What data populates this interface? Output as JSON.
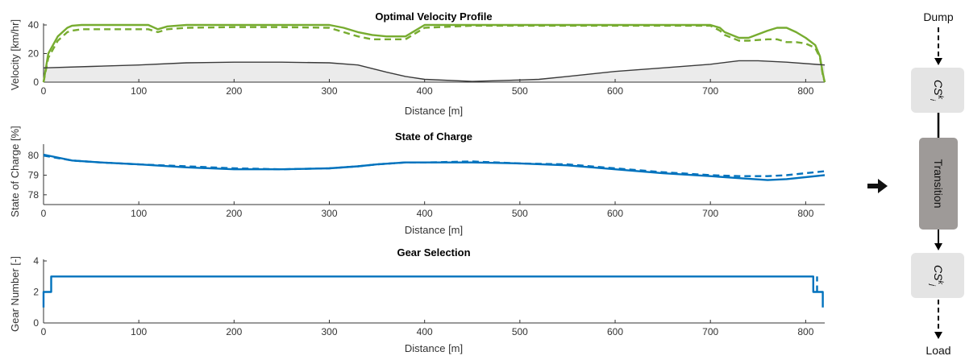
{
  "chart_data": [
    {
      "type": "line",
      "title": "Optimal Velocity Profile",
      "xlabel": "Distance [m]",
      "ylabel": "Velocity [km/hr]",
      "xlim": [
        0,
        820
      ],
      "ylim": [
        0,
        40
      ],
      "xticks": [
        0,
        100,
        200,
        300,
        400,
        500,
        600,
        700,
        800
      ],
      "yticks": [
        0,
        20,
        40
      ],
      "grid": false,
      "series": [
        {
          "style": "solid",
          "color": "#77ac30",
          "x": [
            0,
            5,
            15,
            25,
            30,
            40,
            60,
            80,
            100,
            110,
            120,
            130,
            150,
            200,
            250,
            300,
            315,
            330,
            345,
            360,
            380,
            400,
            450,
            500,
            550,
            600,
            650,
            700,
            710,
            715,
            730,
            740,
            760,
            770,
            780,
            790,
            800,
            810,
            815,
            818,
            820
          ],
          "y": [
            0,
            20,
            32,
            38,
            39.5,
            40,
            40,
            40,
            40,
            40,
            37,
            39,
            40,
            40,
            40,
            40,
            38,
            35,
            33,
            32,
            32,
            40,
            40,
            40,
            40,
            40,
            40,
            40,
            38,
            35,
            31,
            31,
            36,
            38,
            38,
            35,
            31,
            26,
            18,
            6,
            0
          ]
        },
        {
          "style": "dashed",
          "color": "#77ac30",
          "x": [
            0,
            5,
            15,
            25,
            30,
            40,
            60,
            80,
            100,
            110,
            120,
            130,
            150,
            200,
            250,
            300,
            315,
            330,
            345,
            360,
            380,
            400,
            450,
            500,
            550,
            600,
            650,
            700,
            710,
            715,
            730,
            740,
            760,
            770,
            780,
            790,
            800,
            810,
            815,
            818,
            820
          ],
          "y": [
            0,
            17,
            29,
            35,
            36,
            37,
            37,
            37,
            37,
            37,
            35,
            37,
            38,
            38.5,
            38.5,
            38,
            35,
            32,
            30,
            30,
            30,
            38,
            39.5,
            39.5,
            39.5,
            39.5,
            39.5,
            39.5,
            36,
            33,
            29,
            29,
            30,
            30,
            28,
            28,
            27,
            24,
            17,
            5,
            0
          ]
        },
        {
          "style": "solid",
          "color": "#3a3a3a",
          "fill": "#ebebeb",
          "x": [
            0,
            50,
            100,
            150,
            200,
            250,
            300,
            330,
            360,
            380,
            400,
            450,
            500,
            520,
            550,
            600,
            650,
            700,
            730,
            750,
            780,
            820
          ],
          "y": [
            10,
            11,
            12,
            13.5,
            14,
            14,
            13.5,
            12,
            7,
            4,
            2,
            0.5,
            1.5,
            2,
            4,
            7.5,
            10,
            12.5,
            15,
            15,
            14,
            12
          ]
        }
      ]
    },
    {
      "type": "line",
      "title": "State of Charge",
      "xlabel": "Distance [m]",
      "ylabel": "State of Charge [%]",
      "xlim": [
        0,
        820
      ],
      "ylim": [
        77.5,
        80.5
      ],
      "xticks": [
        0,
        100,
        200,
        300,
        400,
        500,
        600,
        700,
        800
      ],
      "yticks": [
        78,
        79,
        80
      ],
      "grid": false,
      "series": [
        {
          "style": "solid",
          "color": "#0072bd",
          "x": [
            0,
            30,
            60,
            100,
            150,
            200,
            250,
            300,
            330,
            350,
            380,
            400,
            450,
            500,
            550,
            600,
            650,
            700,
            730,
            760,
            780,
            820
          ],
          "y": [
            80.05,
            79.75,
            79.65,
            79.55,
            79.4,
            79.3,
            79.3,
            79.35,
            79.45,
            79.55,
            79.65,
            79.65,
            79.65,
            79.6,
            79.5,
            79.3,
            79.1,
            78.95,
            78.85,
            78.75,
            78.8,
            79.0
          ]
        },
        {
          "style": "dashed",
          "color": "#0072bd",
          "x": [
            0,
            30,
            60,
            100,
            150,
            200,
            250,
            300,
            330,
            350,
            380,
            400,
            450,
            500,
            550,
            600,
            650,
            700,
            730,
            760,
            780,
            820
          ],
          "y": [
            80.0,
            79.75,
            79.65,
            79.55,
            79.45,
            79.35,
            79.3,
            79.35,
            79.45,
            79.55,
            79.65,
            79.65,
            79.7,
            79.6,
            79.55,
            79.35,
            79.15,
            79.0,
            78.95,
            78.95,
            79.0,
            79.2
          ]
        }
      ]
    },
    {
      "type": "line",
      "title": "Gear Selection",
      "xlabel": "Distance [m]",
      "ylabel": "Gear Number [-]",
      "xlim": [
        0,
        820
      ],
      "ylim": [
        0,
        4
      ],
      "xticks": [
        0,
        100,
        200,
        300,
        400,
        500,
        600,
        700,
        800
      ],
      "yticks": [
        0,
        2,
        4
      ],
      "grid": false,
      "series": [
        {
          "style": "solid",
          "color": "#0072bd",
          "x": [
            0,
            0,
            4,
            4,
            8,
            8,
            808,
            808,
            818,
            818
          ],
          "y": [
            1,
            2,
            2,
            2,
            2,
            3,
            3,
            2,
            2,
            1
          ]
        },
        {
          "style": "dashed",
          "color": "#0072bd",
          "x": [
            812,
            812
          ],
          "y": [
            2,
            3
          ]
        }
      ]
    }
  ],
  "diagram": {
    "top_label": "Dump",
    "state_i_label": "CS",
    "state_i_sup": "k",
    "state_i_sub": "i",
    "transition_label": "Transition",
    "state_j_label": "CS",
    "state_j_sup": "k",
    "state_j_sub": "j",
    "bottom_label": "Load"
  }
}
